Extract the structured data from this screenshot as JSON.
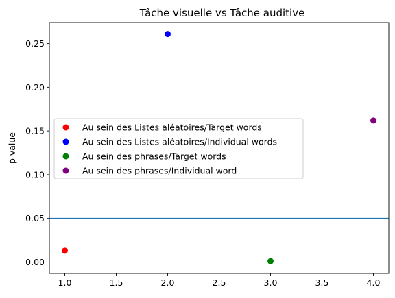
{
  "chart_data": {
    "type": "scatter",
    "title": "Tâche visuelle vs Tâche auditive",
    "xlabel": "",
    "ylabel": "p value",
    "xlim": [
      0.85,
      4.15
    ],
    "ylim": [
      -0.013,
      0.274
    ],
    "xticks": [
      "1.0",
      "1.5",
      "2.0",
      "2.5",
      "3.0",
      "3.5",
      "4.0"
    ],
    "yticks": [
      "0.00",
      "0.05",
      "0.10",
      "0.15",
      "0.20",
      "0.25"
    ],
    "grid": false,
    "legend_position": "center-left",
    "series": [
      {
        "name": "Au sein des Listes aléatoires/Target words",
        "color": "#ff0000",
        "x": [
          1
        ],
        "y": [
          0.013
        ]
      },
      {
        "name": "Au sein des Listes aléatoires/Individual words",
        "color": "#0000ff",
        "x": [
          2
        ],
        "y": [
          0.261
        ]
      },
      {
        "name": "Au sein des phrases/Target words",
        "color": "#008000",
        "x": [
          3
        ],
        "y": [
          0.001
        ]
      },
      {
        "name": "Au sein des phrases/Individual word",
        "color": "#800080",
        "x": [
          4
        ],
        "y": [
          0.162
        ]
      }
    ],
    "reference_lines": [
      {
        "orientation": "horizontal",
        "y": 0.05,
        "color": "#1f77b4"
      }
    ]
  }
}
